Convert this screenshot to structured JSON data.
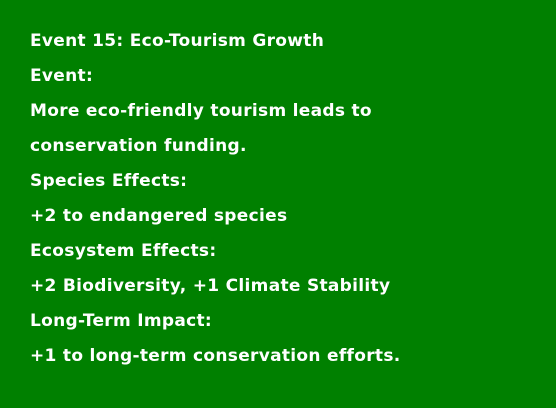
{
  "event_card": {
    "title": "Event 15: Eco-Tourism Growth",
    "event_label": "Event:",
    "description_lines": [
      "More eco-friendly tourism leads to",
      "conservation funding."
    ],
    "species_label": "Species Effects:",
    "species_effects": "+2 to endangered species",
    "ecosystem_label": "Ecosystem Effects:",
    "ecosystem_effects": "+2 Biodiversity, +1 Climate Stability",
    "long_term_label": "Long-Term Impact:",
    "long_term_impact": "+1 to long-term conservation efforts."
  },
  "colors": {
    "background": "#008000",
    "text": "#ffffff"
  }
}
